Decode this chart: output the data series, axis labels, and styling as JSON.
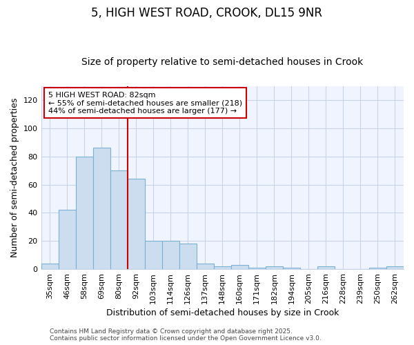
{
  "title": "5, HIGH WEST ROAD, CROOK, DL15 9NR",
  "subtitle": "Size of property relative to semi-detached houses in Crook",
  "xlabel": "Distribution of semi-detached houses by size in Crook",
  "ylabel": "Number of semi-detached properties",
  "categories": [
    "35sqm",
    "46sqm",
    "58sqm",
    "69sqm",
    "80sqm",
    "92sqm",
    "103sqm",
    "114sqm",
    "126sqm",
    "137sqm",
    "148sqm",
    "160sqm",
    "171sqm",
    "182sqm",
    "194sqm",
    "205sqm",
    "216sqm",
    "228sqm",
    "239sqm",
    "250sqm",
    "262sqm"
  ],
  "values": [
    4,
    42,
    80,
    86,
    70,
    64,
    20,
    20,
    18,
    4,
    2,
    3,
    1,
    2,
    1,
    0,
    2,
    0,
    0,
    1,
    2
  ],
  "bar_color": "#ccddf0",
  "bar_edge_color": "#7ab0d4",
  "vline_color": "#cc0000",
  "vline_x": 4.5,
  "ylim": [
    0,
    130
  ],
  "yticks": [
    0,
    20,
    40,
    60,
    80,
    100,
    120
  ],
  "annotation_text_line1": "5 HIGH WEST ROAD: 82sqm",
  "annotation_text_line2": "← 55% of semi-detached houses are smaller (218)",
  "annotation_text_line3": "44% of semi-detached houses are larger (177) →",
  "annotation_box_edge_color": "#cc0000",
  "annotation_box_face_color": "#ffffff",
  "background_color": "#ffffff",
  "plot_bg_color": "#f0f4ff",
  "grid_color": "#c8d4e8",
  "footer_line1": "Contains HM Land Registry data © Crown copyright and database right 2025.",
  "footer_line2": "Contains public sector information licensed under the Open Government Licence v3.0.",
  "title_fontsize": 12,
  "subtitle_fontsize": 10,
  "axis_label_fontsize": 9,
  "tick_fontsize": 8,
  "annotation_fontsize": 8,
  "footer_fontsize": 6.5
}
